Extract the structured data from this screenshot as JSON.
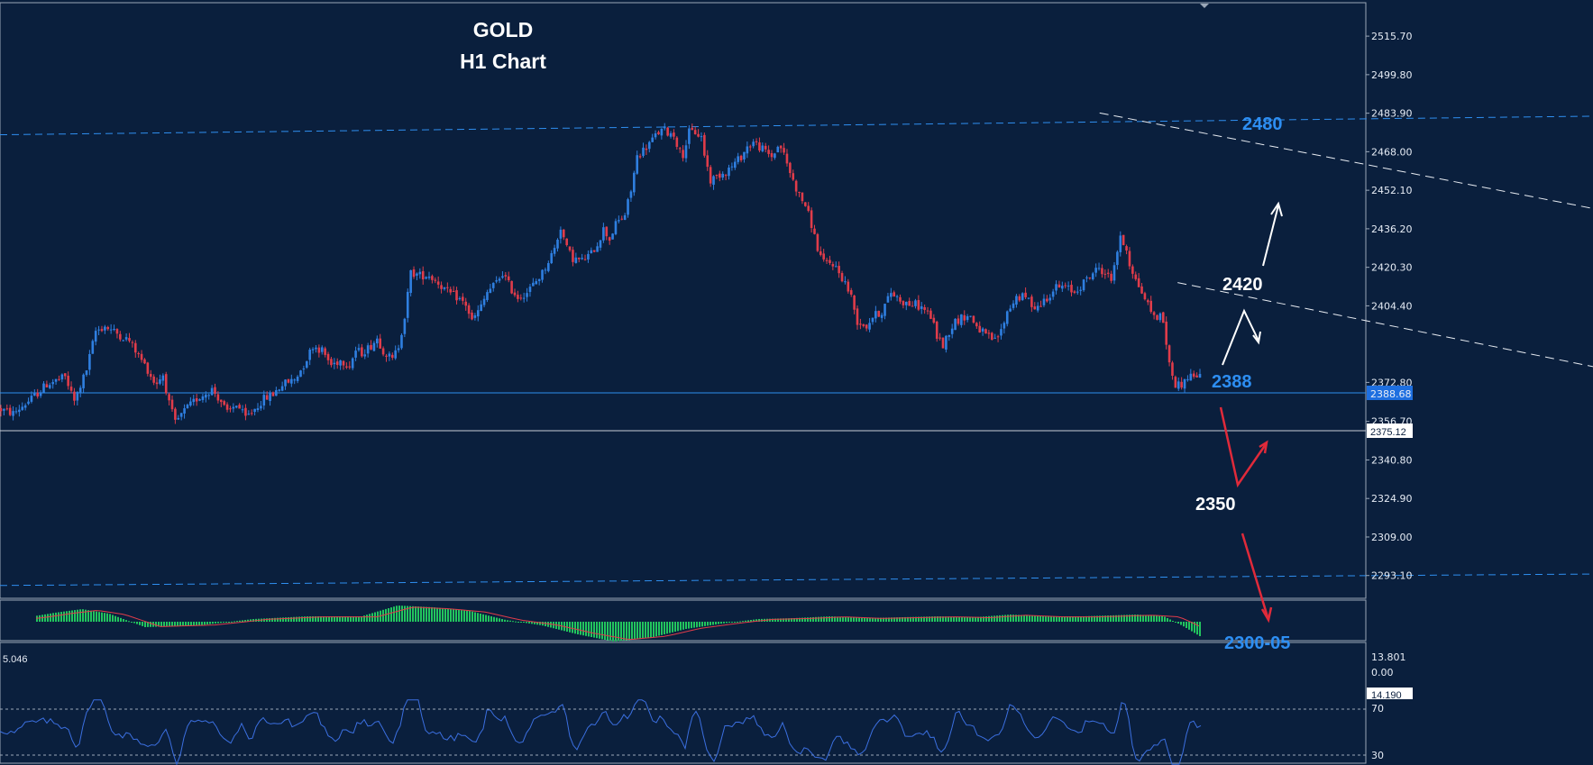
{
  "chart_data": {
    "type": "candlestick",
    "title": "GOLD",
    "subtitle": "H1 Chart",
    "symbol": "GOLD",
    "timeframe": "H1",
    "ylim": [
      2285,
      2530
    ],
    "y_ticks": [
      "2515.70",
      "2499.80",
      "2483.90",
      "2468.00",
      "2452.10",
      "2436.20",
      "2420.30",
      "2404.40",
      "2388.68",
      "2372.80",
      "2356.70",
      "2340.80",
      "2324.90",
      "2309.00",
      "2293.10"
    ],
    "current_price_label": "2375.12",
    "level_line_label": "2388.68",
    "colors": {
      "bull": "#2f7fe0",
      "bear": "#e03c4a",
      "background": "#0a1f3d",
      "grid_border": "#9aa7b8",
      "level_line": "#2f8ff0",
      "channel": "#e8ecf2",
      "annot_blue": "#2d8ef2",
      "annot_white": "#ffffff",
      "annot_red": "#e02a3a"
    },
    "annotations": [
      {
        "text": "2480",
        "color": "blue"
      },
      {
        "text": "2420",
        "color": "white"
      },
      {
        "text": "2388",
        "color": "blue"
      },
      {
        "text": "2350",
        "color": "white"
      },
      {
        "text": "2300-05",
        "color": "blue"
      }
    ],
    "path_points": [
      [
        0,
        2362
      ],
      [
        10,
        2360
      ],
      [
        22,
        2366
      ],
      [
        32,
        2372
      ],
      [
        44,
        2375
      ],
      [
        50,
        2365
      ],
      [
        58,
        2378
      ],
      [
        64,
        2394
      ],
      [
        70,
        2396
      ],
      [
        78,
        2393
      ],
      [
        86,
        2390
      ],
      [
        92,
        2384
      ],
      [
        98,
        2378
      ],
      [
        103,
        2372
      ],
      [
        108,
        2376
      ],
      [
        112,
        2364
      ],
      [
        116,
        2356
      ],
      [
        122,
        2361
      ],
      [
        130,
        2366
      ],
      [
        140,
        2370
      ],
      [
        146,
        2365
      ],
      [
        150,
        2360
      ],
      [
        156,
        2364
      ],
      [
        162,
        2358
      ],
      [
        168,
        2362
      ],
      [
        174,
        2366
      ],
      [
        180,
        2368
      ],
      [
        186,
        2372
      ],
      [
        194,
        2374
      ],
      [
        200,
        2380
      ],
      [
        206,
        2388
      ],
      [
        212,
        2386
      ],
      [
        218,
        2380
      ],
      [
        224,
        2382
      ],
      [
        230,
        2380
      ],
      [
        234,
        2386
      ],
      [
        238,
        2385
      ],
      [
        244,
        2388
      ],
      [
        248,
        2391
      ],
      [
        252,
        2386
      ],
      [
        258,
        2382
      ],
      [
        262,
        2388
      ],
      [
        266,
        2400
      ],
      [
        270,
        2418
      ],
      [
        276,
        2417
      ],
      [
        282,
        2417
      ],
      [
        288,
        2414
      ],
      [
        294,
        2410
      ],
      [
        300,
        2408
      ],
      [
        306,
        2405
      ],
      [
        310,
        2398
      ],
      [
        316,
        2404
      ],
      [
        320,
        2410
      ],
      [
        326,
        2414
      ],
      [
        330,
        2418
      ],
      [
        336,
        2411
      ],
      [
        340,
        2408
      ],
      [
        346,
        2410
      ],
      [
        350,
        2413
      ],
      [
        356,
        2418
      ],
      [
        360,
        2423
      ],
      [
        364,
        2428
      ],
      [
        368,
        2437
      ],
      [
        372,
        2428
      ],
      [
        376,
        2424
      ],
      [
        382,
        2423
      ],
      [
        388,
        2426
      ],
      [
        392,
        2430
      ],
      [
        396,
        2436
      ],
      [
        400,
        2432
      ],
      [
        404,
        2438
      ],
      [
        410,
        2442
      ],
      [
        414,
        2452
      ],
      [
        418,
        2466
      ],
      [
        424,
        2470
      ],
      [
        428,
        2473
      ],
      [
        432,
        2476
      ],
      [
        436,
        2477
      ],
      [
        438,
        2476
      ],
      [
        442,
        2475
      ],
      [
        446,
        2468
      ],
      [
        448,
        2467
      ],
      [
        452,
        2476
      ],
      [
        456,
        2476
      ],
      [
        460,
        2474
      ],
      [
        462,
        2467
      ],
      [
        466,
        2456
      ],
      [
        470,
        2458
      ],
      [
        476,
        2460
      ],
      [
        480,
        2462
      ],
      [
        486,
        2466
      ],
      [
        490,
        2470
      ],
      [
        494,
        2472
      ],
      [
        498,
        2470
      ],
      [
        502,
        2468
      ],
      [
        506,
        2466
      ],
      [
        510,
        2470
      ],
      [
        512,
        2470
      ],
      [
        516,
        2463
      ],
      [
        520,
        2456
      ],
      [
        524,
        2450
      ],
      [
        528,
        2446
      ],
      [
        532,
        2438
      ],
      [
        536,
        2428
      ],
      [
        540,
        2422
      ],
      [
        546,
        2422
      ],
      [
        550,
        2418
      ],
      [
        554,
        2414
      ],
      [
        558,
        2408
      ],
      [
        562,
        2398
      ],
      [
        568,
        2396
      ],
      [
        572,
        2400
      ],
      [
        578,
        2402
      ],
      [
        584,
        2410
      ],
      [
        588,
        2408
      ],
      [
        592,
        2406
      ],
      [
        596,
        2405
      ],
      [
        600,
        2405
      ],
      [
        606,
        2403
      ],
      [
        610,
        2400
      ],
      [
        614,
        2392
      ],
      [
        618,
        2388
      ],
      [
        622,
        2394
      ],
      [
        626,
        2398
      ],
      [
        632,
        2400
      ],
      [
        636,
        2400
      ],
      [
        640,
        2396
      ],
      [
        646,
        2392
      ],
      [
        652,
        2390
      ],
      [
        656,
        2394
      ],
      [
        660,
        2402
      ],
      [
        666,
        2408
      ],
      [
        672,
        2408
      ],
      [
        676,
        2405
      ],
      [
        680,
        2404
      ],
      [
        686,
        2408
      ],
      [
        692,
        2412
      ],
      [
        698,
        2412
      ],
      [
        704,
        2410
      ],
      [
        710,
        2414
      ],
      [
        716,
        2418
      ],
      [
        720,
        2420
      ],
      [
        724,
        2418
      ],
      [
        728,
        2415
      ],
      [
        730,
        2422
      ],
      [
        734,
        2432
      ],
      [
        738,
        2428
      ],
      [
        740,
        2422
      ],
      [
        744,
        2415
      ],
      [
        748,
        2410
      ],
      [
        752,
        2405
      ],
      [
        756,
        2400
      ],
      [
        760,
        2400
      ],
      [
        762,
        2398
      ],
      [
        766,
        2380
      ],
      [
        770,
        2372
      ],
      [
        774,
        2372
      ],
      [
        778,
        2375
      ],
      [
        782,
        2376
      ],
      [
        784,
        2375
      ]
    ],
    "channel_upper": [
      [
        719,
        2484
      ],
      [
        1390,
        2402
      ]
    ],
    "channel_lower": [
      [
        770,
        2414
      ],
      [
        1514,
        2319
      ]
    ],
    "resistance_line": [
      [
        0,
        2475
      ],
      [
        1767,
        2488
      ]
    ],
    "support_line": [
      [
        0,
        2289
      ],
      [
        1767,
        2297
      ]
    ],
    "macd": {
      "label": "5.046",
      "ticks": [
        "13.801",
        "0.00"
      ]
    },
    "rsi": {
      "ticks": [
        "70",
        "30"
      ],
      "value_label": "14.190"
    }
  }
}
